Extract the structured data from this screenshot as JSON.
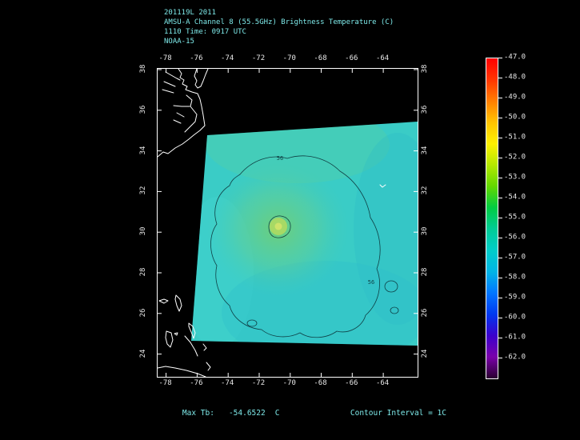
{
  "header": {
    "line1": "201119L 2011",
    "line2": "AMSU-A Channel 8 (55.5GHz) Brightness Temperature (C)",
    "line3": "1110 Time: 0917 UTC",
    "line4": "NOAA-15"
  },
  "footer": {
    "max_tb_label": "Max Tb:",
    "max_tb_value": "-54.6522",
    "max_tb_unit": "C",
    "contour_interval_label": "Contour Interval = 1C"
  },
  "map": {
    "lon_labels": [
      "-78",
      "-76",
      "-74",
      "-72",
      "-70",
      "-68",
      "-66",
      "-64"
    ],
    "lat_labels": [
      "38",
      "36",
      "34",
      "32",
      "30",
      "28",
      "26",
      "24"
    ],
    "contour_labels": [
      "56",
      "56"
    ]
  },
  "colorbar": {
    "labels": [
      "-47.0",
      "-48.0",
      "-49.0",
      "-50.0",
      "-51.0",
      "-52.0",
      "-53.0",
      "-54.0",
      "-55.0",
      "-56.0",
      "-57.0",
      "-58.0",
      "-59.0",
      "-60.0",
      "-61.0",
      "-62.0"
    ],
    "colors": [
      "#ff0000",
      "#ff3600",
      "#ff7e00",
      "#ffc400",
      "#fdf100",
      "#b4e800",
      "#62d800",
      "#00cc44",
      "#00cc96",
      "#00cdc9",
      "#00b4e6",
      "#0076ff",
      "#0038f0",
      "#3c00cc",
      "#7a00aa",
      "#2a0030"
    ]
  },
  "colors": {
    "background": "#000000",
    "header_text": "#7de8e8",
    "axis_text": "#e8e8e8",
    "coastline": "#ffffff",
    "swath_base": "#3accc6",
    "contour": "#0b3238"
  },
  "chart_data": {
    "type": "heatmap",
    "title": "AMSU-A Channel 8 (55.5GHz) Brightness Temperature (C)",
    "dataset_label": "201119L 2011",
    "time_label": "1110 Time: 0917 UTC",
    "satellite": "NOAA-15",
    "x_axis": {
      "label": "longitude_deg",
      "ticks": [
        -78,
        -76,
        -74,
        -72,
        -70,
        -68,
        -66,
        -64
      ]
    },
    "y_axis": {
      "label": "latitude_deg",
      "ticks": [
        38,
        36,
        34,
        32,
        30,
        28,
        26,
        24
      ]
    },
    "colorbar": {
      "units": "C",
      "ticks": [
        -47,
        -48,
        -49,
        -50,
        -51,
        -52,
        -53,
        -54,
        -55,
        -56,
        -57,
        -58,
        -59,
        -60,
        -61,
        -62
      ]
    },
    "max_tb_c": -54.6522,
    "contour_interval_c": 1,
    "contour_label_values_c": [
      -56,
      -56
    ],
    "swath": {
      "typical_value_c": -56,
      "core_value_c": -54.65,
      "core_location_estimate": {
        "lon": -70.9,
        "lat": 30.2
      }
    },
    "legend_position": "right",
    "grid": false
  }
}
